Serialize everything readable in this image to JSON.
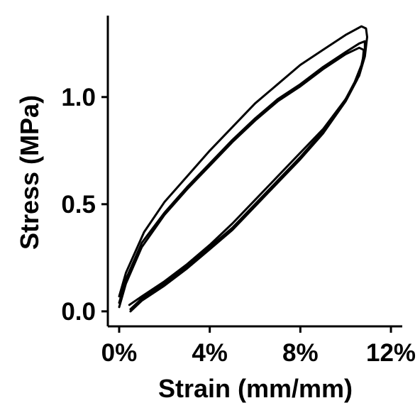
{
  "chart_data": {
    "type": "line",
    "title": "",
    "xlabel": "Strain (mm/mm)",
    "ylabel": "Stress (MPa)",
    "xlim": [
      -0.005,
      0.125
    ],
    "ylim": [
      -0.07,
      1.38
    ],
    "x_ticks": [
      0,
      0.04,
      0.08,
      0.12
    ],
    "x_tick_labels": [
      "0%",
      "4%",
      "8%",
      "12%"
    ],
    "y_ticks": [
      0.0,
      0.5,
      1.0
    ],
    "y_tick_labels": [
      "0.0",
      "0.5",
      "1.0"
    ],
    "grid": false,
    "legend": "none",
    "line_color": "#000000",
    "series": [
      {
        "x": [
          0.0,
          0.003,
          0.011,
          0.02,
          0.03,
          0.04,
          0.05,
          0.06,
          0.07,
          0.08,
          0.09,
          0.1,
          0.107,
          0.109,
          0.1095,
          0.1085,
          0.106,
          0.1,
          0.09,
          0.08,
          0.07,
          0.06,
          0.05,
          0.04,
          0.03,
          0.02,
          0.01,
          0.0045
        ],
        "y": [
          0.07,
          0.18,
          0.37,
          0.51,
          0.63,
          0.75,
          0.86,
          0.97,
          1.06,
          1.15,
          1.22,
          1.29,
          1.33,
          1.32,
          1.28,
          1.19,
          1.1,
          0.99,
          0.85,
          0.74,
          0.63,
          0.52,
          0.41,
          0.31,
          0.22,
          0.14,
          0.07,
          0.03
        ]
      },
      {
        "x": [
          0.0,
          0.003,
          0.01,
          0.02,
          0.03,
          0.04,
          0.05,
          0.06,
          0.07,
          0.08,
          0.09,
          0.1,
          0.106,
          0.1085,
          0.1085,
          0.107,
          0.104,
          0.1,
          0.09,
          0.08,
          0.07,
          0.06,
          0.05,
          0.04,
          0.03,
          0.02,
          0.01,
          0.005
        ],
        "y": [
          0.04,
          0.15,
          0.32,
          0.46,
          0.58,
          0.69,
          0.8,
          0.9,
          0.99,
          1.06,
          1.14,
          1.21,
          1.25,
          1.26,
          1.22,
          1.15,
          1.07,
          0.99,
          0.84,
          0.72,
          0.61,
          0.5,
          0.39,
          0.3,
          0.21,
          0.13,
          0.06,
          0.01
        ]
      },
      {
        "x": [
          0.0,
          0.003,
          0.01,
          0.02,
          0.03,
          0.04,
          0.05,
          0.06,
          0.07,
          0.08,
          0.09,
          0.1,
          0.106,
          0.108,
          0.1075,
          0.105,
          0.1,
          0.09,
          0.08,
          0.07,
          0.06,
          0.05,
          0.04,
          0.03,
          0.02,
          0.01,
          0.005
        ],
        "y": [
          0.02,
          0.13,
          0.3,
          0.45,
          0.57,
          0.68,
          0.79,
          0.89,
          0.98,
          1.05,
          1.13,
          1.2,
          1.23,
          1.22,
          1.16,
          1.08,
          0.98,
          0.83,
          0.71,
          0.6,
          0.49,
          0.38,
          0.29,
          0.2,
          0.12,
          0.05,
          0.0
        ]
      }
    ]
  }
}
